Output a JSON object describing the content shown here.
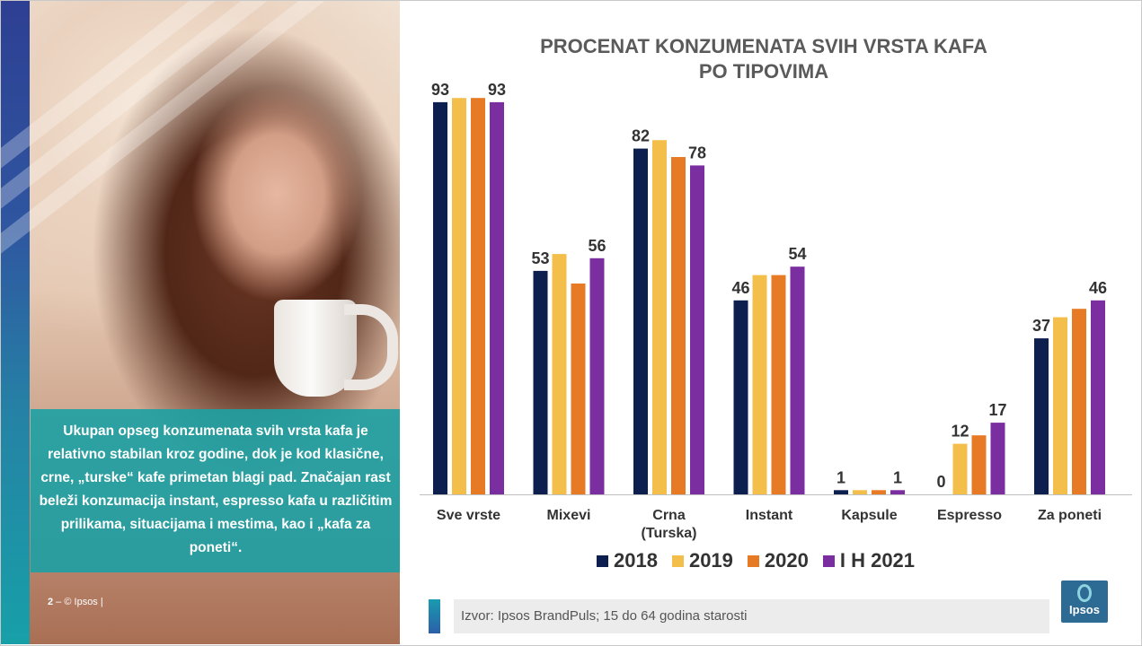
{
  "description_text": "Ukupan opseg konzumenata svih vrsta kafa je relativno stabilan kroz godine, dok je kod klasične, crne, „turske“ kafe primetan blagi pad. Značajan rast beleži konzumacija instant, espresso kafa u različitim prilikama, situacijama i mestima, kao i „kafa za poneti“.",
  "footer": {
    "page": "2",
    "sep": " – ",
    "brand": "© Ipsos |"
  },
  "source": "Izvor: Ipsos BrandPuls; 15 do 64 godina starosti",
  "logo_text": "Ipsos",
  "colors": {
    "2018": "#0c1f4f",
    "2019": "#f3bf4a",
    "2020": "#e77a24",
    "I H 2021": "#7a2ea0",
    "accent_teal": "#1ca0a4"
  },
  "chart_data": {
    "type": "bar",
    "title_line1": "PROCENAT KONZUMENATA SVIH VRSTA KAFA",
    "title_line2": "PO TIPOVIMA",
    "categories": [
      [
        "Sve vrste"
      ],
      [
        "Mixevi"
      ],
      [
        "Crna",
        "(Turska)"
      ],
      [
        "Instant"
      ],
      [
        "Kapsule"
      ],
      [
        "Espresso"
      ],
      [
        "Za poneti"
      ]
    ],
    "series": [
      {
        "name": "2018",
        "color": "#0c1f4f",
        "values": [
          93,
          53,
          82,
          46,
          1,
          0,
          37
        ]
      },
      {
        "name": "2019",
        "color": "#f3bf4a",
        "values": [
          94,
          57,
          84,
          52,
          1,
          12,
          42
        ]
      },
      {
        "name": "2020",
        "color": "#e77a24",
        "values": [
          94,
          50,
          80,
          52,
          1,
          14,
          44
        ]
      },
      {
        "name": "I H 2021",
        "color": "#7a2ea0",
        "values": [
          93,
          56,
          78,
          54,
          1,
          17,
          46
        ]
      }
    ],
    "data_labels": {
      "2018": [
        "93",
        "53",
        "82",
        "46",
        "1",
        "0",
        "37"
      ],
      "I H 2021": [
        "93",
        "56",
        "78",
        "54",
        "1",
        "17",
        "46"
      ],
      "2019": [
        "",
        "",
        "",
        "",
        "",
        "12",
        ""
      ]
    },
    "ylim": [
      0,
      100
    ],
    "legend_position": "bottom",
    "grid": false
  }
}
